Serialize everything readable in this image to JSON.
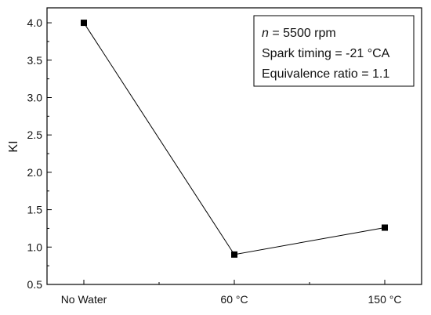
{
  "chart_data": {
    "type": "line",
    "categories": [
      "No Water",
      "60 °C",
      "150 °C"
    ],
    "series": [
      {
        "values": [
          4.0,
          0.9,
          1.26
        ]
      }
    ],
    "ylabel": "KI",
    "xlabel": "",
    "ylim": [
      0.5,
      4.2
    ],
    "yticks": [
      "0.5",
      "1.0",
      "1.5",
      "2.0",
      "2.5",
      "3.0",
      "3.5",
      "4.0"
    ],
    "grid": false,
    "legend_position": "top-right",
    "annotation": {
      "speed_var": "n",
      "speed_rest": " = 5500 rpm",
      "spark": "Spark timing = -21 °CA",
      "equiv": "Equivalence ratio = 1.1"
    },
    "colors": {
      "line": "#000000",
      "marker": "#000000"
    }
  }
}
